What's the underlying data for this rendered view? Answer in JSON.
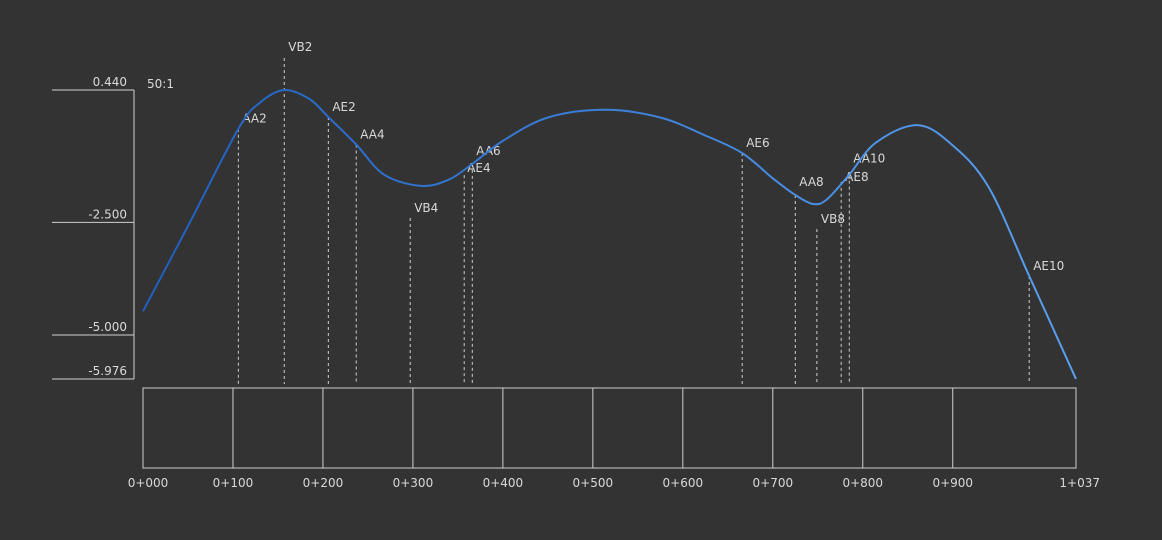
{
  "chart_data": {
    "type": "line",
    "scale_label": "50:1",
    "y_ticks": [
      {
        "value": 0.44,
        "label": "0.440"
      },
      {
        "value": -2.5,
        "label": "-2.500"
      },
      {
        "value": -5.0,
        "label": "-5.000"
      },
      {
        "value": -5.976,
        "label": "-5.976"
      }
    ],
    "x_ticks": [
      {
        "value": 0,
        "label": "0+000"
      },
      {
        "value": 100,
        "label": "0+100"
      },
      {
        "value": 200,
        "label": "0+200"
      },
      {
        "value": 300,
        "label": "0+300"
      },
      {
        "value": 400,
        "label": "0+400"
      },
      {
        "value": 500,
        "label": "0+500"
      },
      {
        "value": 600,
        "label": "0+600"
      },
      {
        "value": 700,
        "label": "0+700"
      },
      {
        "value": 800,
        "label": "0+800"
      },
      {
        "value": 900,
        "label": "0+900"
      },
      {
        "value": 1037,
        "label": "1+037"
      }
    ],
    "xlim": [
      0,
      1037
    ],
    "ylim": [
      -5.976,
      0.44
    ],
    "profile": [
      {
        "x": 0,
        "y": -4.47
      },
      {
        "x": 50,
        "y": -2.58
      },
      {
        "x": 106,
        "y": -0.42
      },
      {
        "x": 130,
        "y": 0.16
      },
      {
        "x": 157,
        "y": 0.44
      },
      {
        "x": 185,
        "y": 0.24
      },
      {
        "x": 206,
        "y": -0.16
      },
      {
        "x": 237,
        "y": -0.77
      },
      {
        "x": 268,
        "y": -1.44
      },
      {
        "x": 309,
        "y": -1.69
      },
      {
        "x": 340,
        "y": -1.55
      },
      {
        "x": 366,
        "y": -1.2
      },
      {
        "x": 400,
        "y": -0.69
      },
      {
        "x": 450,
        "y": -0.17
      },
      {
        "x": 514,
        "y": 0.0
      },
      {
        "x": 575,
        "y": -0.17
      },
      {
        "x": 625,
        "y": -0.57
      },
      {
        "x": 666,
        "y": -0.96
      },
      {
        "x": 700,
        "y": -1.52
      },
      {
        "x": 725,
        "y": -1.89
      },
      {
        "x": 745,
        "y": -2.09
      },
      {
        "x": 760,
        "y": -1.99
      },
      {
        "x": 785,
        "y": -1.44
      },
      {
        "x": 815,
        "y": -0.72
      },
      {
        "x": 861,
        "y": -0.34
      },
      {
        "x": 900,
        "y": -0.79
      },
      {
        "x": 940,
        "y": -1.72
      },
      {
        "x": 985,
        "y": -3.69
      },
      {
        "x": 1037,
        "y": -5.976
      }
    ],
    "markers": [
      {
        "label": "AA2",
        "x": 106,
        "y": -0.42
      },
      {
        "label": "VB2",
        "x": 157,
        "y": 0.44
      },
      {
        "label": "AE2",
        "x": 206,
        "y": -0.16
      },
      {
        "label": "AA4",
        "x": 237,
        "y": -0.77
      },
      {
        "label": "VB4",
        "x": 297,
        "y": -1.69
      },
      {
        "label": "AE4",
        "x": 357,
        "y": -1.45
      },
      {
        "label": "AA6",
        "x": 366,
        "y": -1.2
      },
      {
        "label": "AE6",
        "x": 666,
        "y": -0.96
      },
      {
        "label": "AA8",
        "x": 725,
        "y": -1.89
      },
      {
        "label": "VB8",
        "x": 749,
        "y": -2.09
      },
      {
        "label": "AE8",
        "x": 776,
        "y": -1.6
      },
      {
        "label": "AA10",
        "x": 785,
        "y": -1.44
      },
      {
        "label": "AE10",
        "x": 985,
        "y": -3.69
      }
    ]
  },
  "colors": {
    "background": "#333333",
    "profile_line_start": "#1f5fbf",
    "profile_line_end": "#5aa0f0",
    "axis": "#d0d0d0",
    "text": "#d9d9d9"
  }
}
